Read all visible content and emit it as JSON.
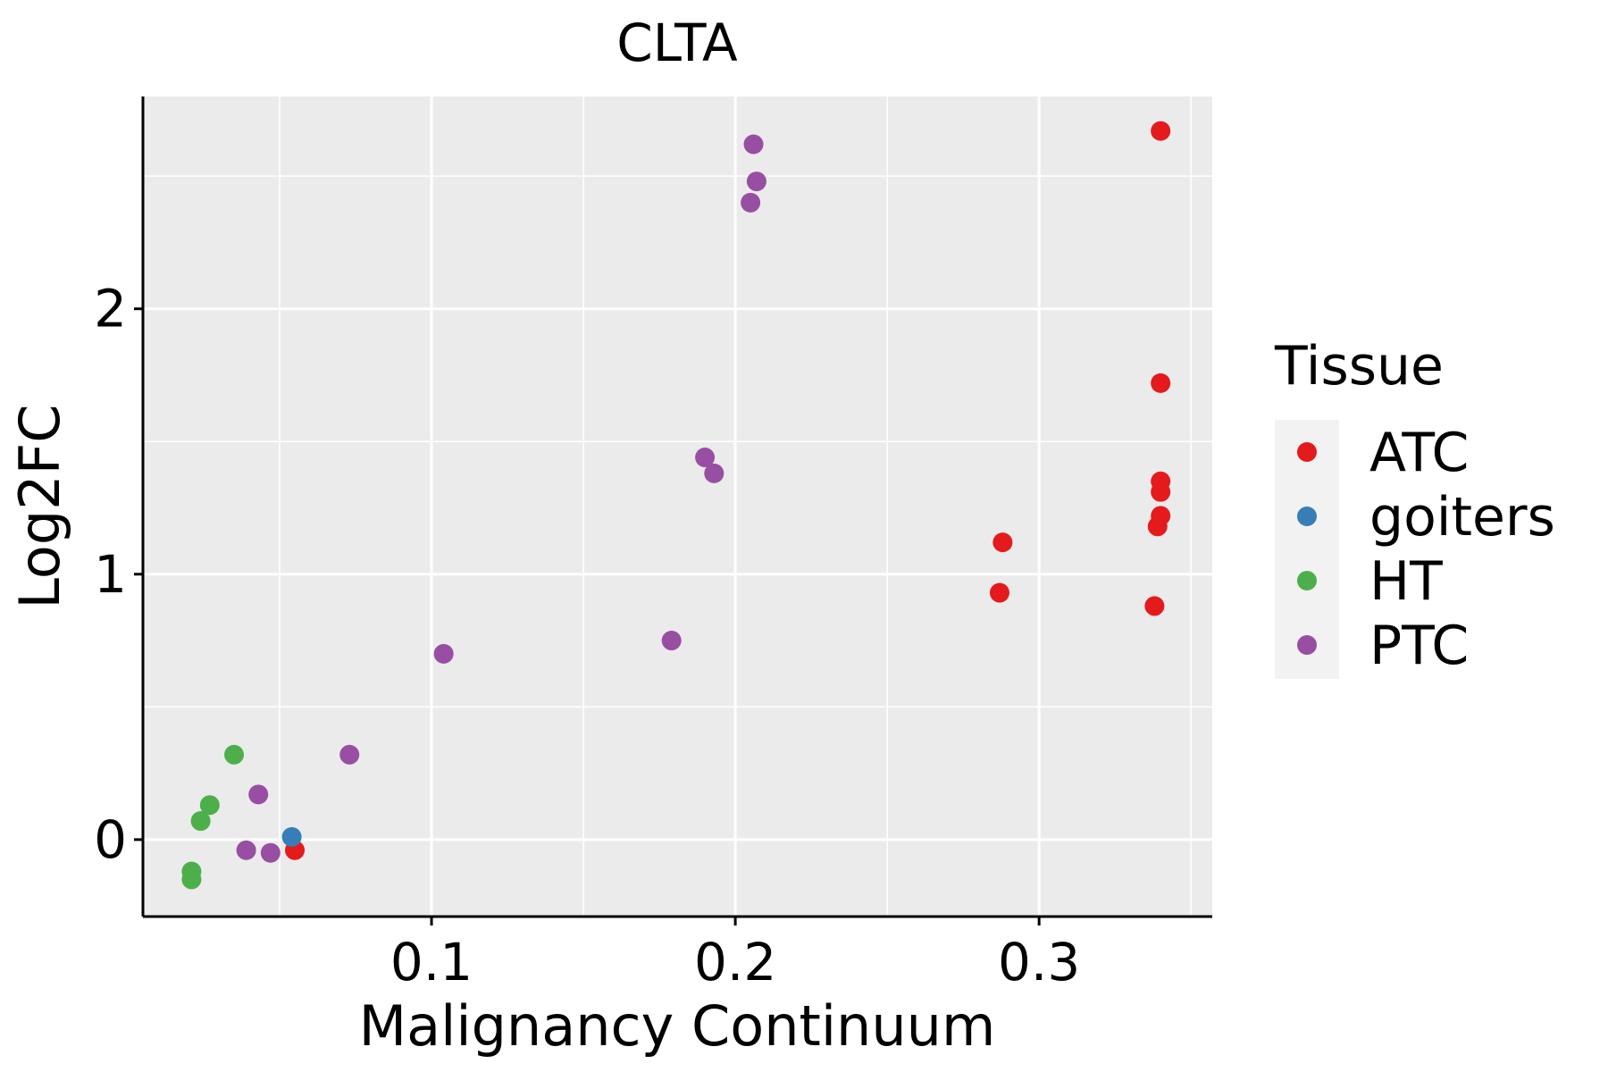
{
  "chart_data": {
    "type": "scatter",
    "title": "CLTA",
    "xlabel": "Malignancy Continuum",
    "ylabel": "Log2FC",
    "xlim": [
      0.005,
      0.357
    ],
    "ylim": [
      -0.29,
      2.8
    ],
    "x_ticks": [
      0.1,
      0.2,
      0.3
    ],
    "x_tick_labels": [
      "0.1",
      "0.2",
      "0.3"
    ],
    "y_ticks": [
      0,
      1,
      2
    ],
    "y_tick_labels": [
      "0",
      "1",
      "2"
    ],
    "grid": true,
    "legend": {
      "title": "Tissue",
      "position": "right",
      "entries": [
        "ATC",
        "goiters",
        "HT",
        "PTC"
      ]
    },
    "series": [
      {
        "name": "ATC",
        "color": "#E41A1C",
        "points": [
          [
            0.055,
            -0.04
          ],
          [
            0.287,
            0.93
          ],
          [
            0.288,
            1.12
          ],
          [
            0.338,
            0.88
          ],
          [
            0.339,
            1.18
          ],
          [
            0.34,
            1.22
          ],
          [
            0.34,
            1.31
          ],
          [
            0.34,
            1.35
          ],
          [
            0.34,
            1.72
          ],
          [
            0.34,
            2.67
          ]
        ]
      },
      {
        "name": "goiters",
        "color": "#377EB8",
        "points": [
          [
            0.054,
            0.01
          ]
        ]
      },
      {
        "name": "HT",
        "color": "#4DAF4A",
        "points": [
          [
            0.021,
            -0.12
          ],
          [
            0.021,
            -0.15
          ],
          [
            0.024,
            0.07
          ],
          [
            0.027,
            0.13
          ],
          [
            0.035,
            0.32
          ]
        ]
      },
      {
        "name": "PTC",
        "color": "#984EA3",
        "points": [
          [
            0.039,
            -0.04
          ],
          [
            0.043,
            0.17
          ],
          [
            0.047,
            -0.05
          ],
          [
            0.073,
            0.32
          ],
          [
            0.104,
            0.7
          ],
          [
            0.179,
            0.75
          ],
          [
            0.19,
            1.44
          ],
          [
            0.193,
            1.38
          ],
          [
            0.205,
            2.4
          ],
          [
            0.206,
            2.62
          ],
          [
            0.207,
            2.48
          ]
        ]
      }
    ]
  }
}
